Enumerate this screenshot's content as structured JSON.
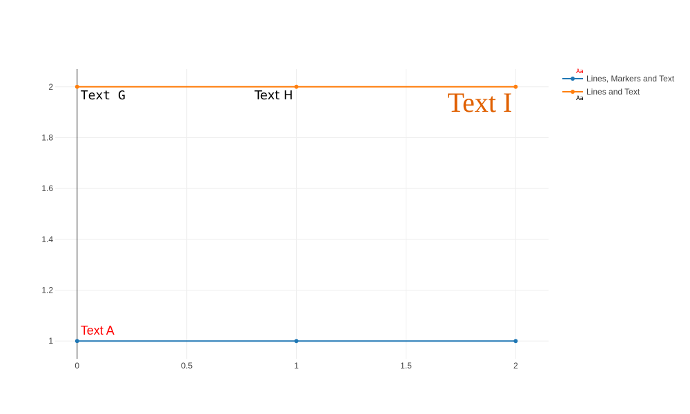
{
  "chart_data": {
    "type": "line",
    "title": "",
    "xlabel": "",
    "ylabel": "",
    "xlim": [
      -0.1,
      2.15
    ],
    "ylim": [
      0.93,
      2.07
    ],
    "grid": true,
    "legend_position": "top-right",
    "x_ticks": [
      0,
      0.5,
      1,
      1.5,
      2
    ],
    "x_tick_labels": [
      "0",
      "0.5",
      "1",
      "1.5",
      "2"
    ],
    "y_ticks": [
      1,
      1.2,
      1.4,
      1.6,
      1.8,
      2
    ],
    "y_tick_labels": [
      "1",
      "1.2",
      "1.4",
      "1.6",
      "1.8",
      "2"
    ],
    "series": [
      {
        "name": "Lines, Markers and Text",
        "color": "#1f77b4",
        "x": [
          0,
          1,
          2
        ],
        "y": [
          1,
          1,
          1
        ],
        "text": [
          "Text A",
          "",
          ""
        ],
        "text_color": "#ff0000",
        "text_position": "top-right"
      },
      {
        "name": "Lines and Text",
        "color": "#ff7f0e",
        "x": [
          0,
          1,
          2
        ],
        "y": [
          2,
          2,
          2
        ],
        "text": [
          "Text G",
          "Text H",
          "Text I"
        ],
        "text_styles": [
          {
            "color": "#000000",
            "font": "mono",
            "position": "bottom-right"
          },
          {
            "color": "#000000",
            "font": "sans",
            "position": "bottom-left"
          },
          {
            "color": "#e06000",
            "font": "serif",
            "position": "bottom-left"
          }
        ]
      }
    ],
    "legend_sample": "Aa"
  }
}
